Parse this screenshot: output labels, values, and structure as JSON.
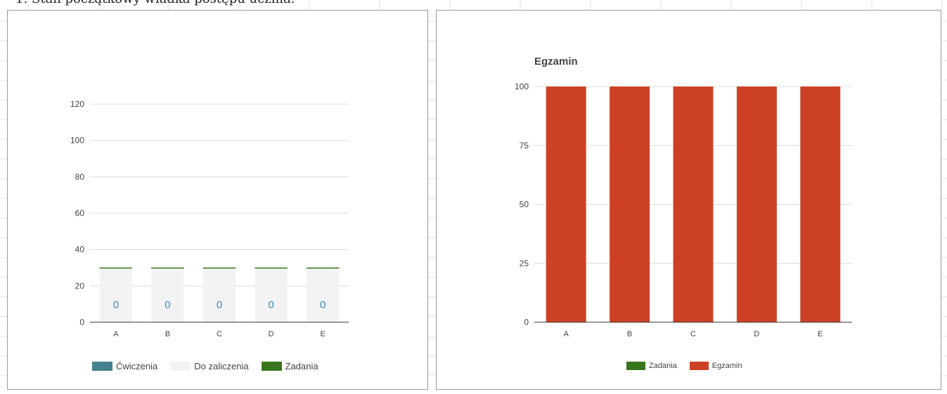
{
  "heading": "1.  Stan początkowy wiadka postępu ucznia.",
  "colors": {
    "cwiczenia": "#45818e",
    "do_zaliczenia": "#f3f3f3",
    "zadania": "#38761d",
    "egzamin": "#cc4125",
    "grid": "#dcdcdc",
    "axis": "#333333",
    "label": "#444444",
    "value_label": "#3d85c6"
  },
  "chart_data": [
    {
      "type": "bar",
      "stacked": true,
      "title": "",
      "categories": [
        "A",
        "B",
        "C",
        "D",
        "E"
      ],
      "series": [
        {
          "name": "Ćwiczenia",
          "values": [
            0,
            0,
            0,
            0,
            0
          ],
          "color": "#45818e"
        },
        {
          "name": "Do zaliczenia",
          "values": [
            30,
            30,
            30,
            30,
            30
          ],
          "color": "#f3f3f3"
        },
        {
          "name": "Zadania",
          "values": [
            0,
            0,
            0,
            0,
            0
          ],
          "color": "#38761d"
        }
      ],
      "data_labels": [
        "0",
        "0",
        "0",
        "0",
        "0"
      ],
      "ylim": [
        0,
        120
      ],
      "yticks": [
        "0",
        "20",
        "40",
        "60",
        "80",
        "100",
        "120"
      ],
      "grid": true,
      "legend": "bottom"
    },
    {
      "type": "bar",
      "stacked": true,
      "title": "Egzamin",
      "categories": [
        "A",
        "B",
        "C",
        "D",
        "E"
      ],
      "series": [
        {
          "name": "Zadania",
          "values": [
            0,
            0,
            0,
            0,
            0
          ],
          "color": "#38761d"
        },
        {
          "name": "Egzamin",
          "values": [
            100,
            100,
            100,
            100,
            100
          ],
          "color": "#cc4125"
        }
      ],
      "ylim": [
        0,
        100
      ],
      "yticks": [
        "0",
        "25",
        "50",
        "75",
        "100"
      ],
      "grid": true,
      "legend": "bottom"
    }
  ]
}
